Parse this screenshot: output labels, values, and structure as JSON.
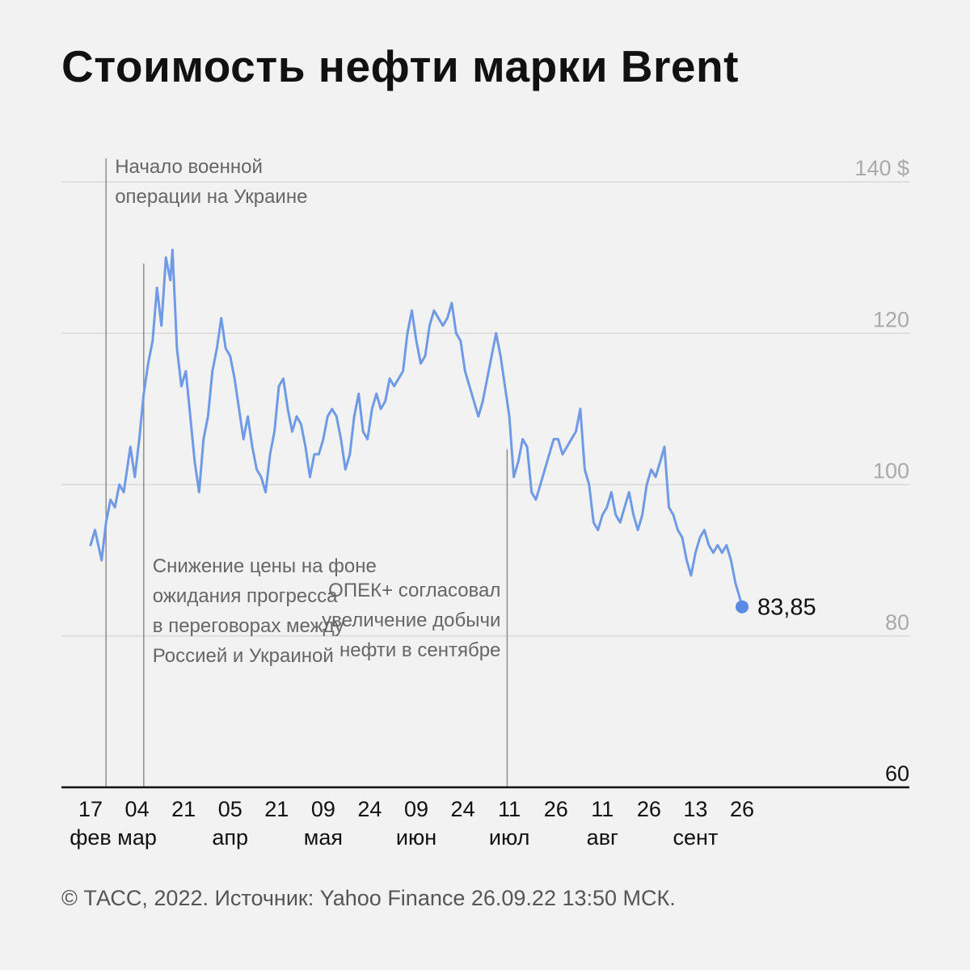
{
  "title": "Стоимость нефти марки Brent",
  "footer": "© ТАСС, 2022. Источник: Yahoo Finance 26.09.22 13:50 МСК.",
  "colors": {
    "series": "#6f9ae6",
    "last_point": "#5b8ae5",
    "background": "#f2f2f2"
  },
  "chart_data": {
    "type": "line",
    "title": "Стоимость нефти марки Brent",
    "ylim": [
      60,
      140
    ],
    "y_ticks": [
      "60",
      "80",
      "100",
      "120",
      "140 $"
    ],
    "grid": true,
    "x_ticks": [
      {
        "day": "17",
        "month": "фев"
      },
      {
        "day": "04",
        "month": "мар"
      },
      {
        "day": "21",
        "month": ""
      },
      {
        "day": "05",
        "month": "апр"
      },
      {
        "day": "21",
        "month": ""
      },
      {
        "day": "09",
        "month": "мая"
      },
      {
        "day": "24",
        "month": ""
      },
      {
        "day": "09",
        "month": "июн"
      },
      {
        "day": "24",
        "month": ""
      },
      {
        "day": "11",
        "month": "июл"
      },
      {
        "day": "26",
        "month": ""
      },
      {
        "day": "11",
        "month": "авг"
      },
      {
        "day": "26",
        "month": ""
      },
      {
        "day": "13",
        "month": "сент"
      },
      {
        "day": "26",
        "month": ""
      }
    ],
    "series": [
      {
        "points": [
          [
            0,
            92
          ],
          [
            2,
            94
          ],
          [
            5,
            90
          ],
          [
            7,
            95
          ],
          [
            9,
            98
          ],
          [
            11,
            97
          ],
          [
            13,
            100
          ],
          [
            15,
            99
          ],
          [
            18,
            105
          ],
          [
            20,
            101
          ],
          [
            22,
            106
          ],
          [
            24,
            112
          ],
          [
            26,
            116
          ],
          [
            28,
            119
          ],
          [
            30,
            126
          ],
          [
            32,
            121
          ],
          [
            34,
            130
          ],
          [
            36,
            127
          ],
          [
            37,
            131
          ],
          [
            39,
            118
          ],
          [
            41,
            113
          ],
          [
            43,
            115
          ],
          [
            45,
            109
          ],
          [
            47,
            103
          ],
          [
            49,
            99
          ],
          [
            51,
            106
          ],
          [
            53,
            109
          ],
          [
            55,
            115
          ],
          [
            57,
            118
          ],
          [
            59,
            122
          ],
          [
            61,
            118
          ],
          [
            63,
            117
          ],
          [
            65,
            114
          ],
          [
            67,
            110
          ],
          [
            69,
            106
          ],
          [
            71,
            109
          ],
          [
            73,
            105
          ],
          [
            75,
            102
          ],
          [
            77,
            101
          ],
          [
            79,
            99
          ],
          [
            81,
            104
          ],
          [
            83,
            107
          ],
          [
            85,
            113
          ],
          [
            87,
            114
          ],
          [
            89,
            110
          ],
          [
            91,
            107
          ],
          [
            93,
            109
          ],
          [
            95,
            108
          ],
          [
            97,
            105
          ],
          [
            99,
            101
          ],
          [
            101,
            104
          ],
          [
            103,
            104
          ],
          [
            105,
            106
          ],
          [
            107,
            109
          ],
          [
            109,
            110
          ],
          [
            111,
            109
          ],
          [
            113,
            106
          ],
          [
            115,
            102
          ],
          [
            117,
            104
          ],
          [
            119,
            109
          ],
          [
            121,
            112
          ],
          [
            123,
            107
          ],
          [
            125,
            106
          ],
          [
            127,
            110
          ],
          [
            129,
            112
          ],
          [
            131,
            110
          ],
          [
            133,
            111
          ],
          [
            135,
            114
          ],
          [
            137,
            113
          ],
          [
            139,
            114
          ],
          [
            141,
            115
          ],
          [
            143,
            120
          ],
          [
            145,
            123
          ],
          [
            147,
            119
          ],
          [
            149,
            116
          ],
          [
            151,
            117
          ],
          [
            153,
            121
          ],
          [
            155,
            123
          ],
          [
            157,
            122
          ],
          [
            159,
            121
          ],
          [
            161,
            122
          ],
          [
            163,
            124
          ],
          [
            165,
            120
          ],
          [
            167,
            119
          ],
          [
            169,
            115
          ],
          [
            171,
            113
          ],
          [
            173,
            111
          ],
          [
            175,
            109
          ],
          [
            177,
            111
          ],
          [
            179,
            114
          ],
          [
            181,
            117
          ],
          [
            183,
            120
          ],
          [
            185,
            117
          ],
          [
            187,
            113
          ],
          [
            189,
            109
          ],
          [
            191,
            101
          ],
          [
            193,
            103
          ],
          [
            195,
            106
          ],
          [
            197,
            105
          ],
          [
            199,
            99
          ],
          [
            201,
            98
          ],
          [
            203,
            100
          ],
          [
            205,
            102
          ],
          [
            207,
            104
          ],
          [
            209,
            106
          ],
          [
            211,
            106
          ],
          [
            213,
            104
          ],
          [
            215,
            105
          ],
          [
            217,
            106
          ],
          [
            219,
            107
          ],
          [
            221,
            110
          ],
          [
            223,
            102
          ],
          [
            225,
            100
          ],
          [
            227,
            95
          ],
          [
            229,
            94
          ],
          [
            231,
            96
          ],
          [
            233,
            97
          ],
          [
            235,
            99
          ],
          [
            237,
            96
          ],
          [
            239,
            95
          ],
          [
            241,
            97
          ],
          [
            243,
            99
          ],
          [
            245,
            96
          ],
          [
            247,
            94
          ],
          [
            249,
            96
          ],
          [
            251,
            100
          ],
          [
            253,
            102
          ],
          [
            255,
            101
          ],
          [
            257,
            103
          ],
          [
            259,
            105
          ],
          [
            261,
            97
          ],
          [
            263,
            96
          ],
          [
            265,
            94
          ],
          [
            267,
            93
          ],
          [
            269,
            90
          ],
          [
            271,
            88
          ],
          [
            273,
            91
          ],
          [
            275,
            93
          ],
          [
            277,
            94
          ],
          [
            279,
            92
          ],
          [
            281,
            91
          ],
          [
            283,
            92
          ],
          [
            285,
            91
          ],
          [
            287,
            92
          ],
          [
            289,
            90
          ],
          [
            291,
            87
          ],
          [
            293,
            85
          ],
          [
            294,
            83.85
          ]
        ],
        "last_value": 83.85,
        "last_label": "83,85"
      }
    ],
    "annotations": [
      {
        "x": 7,
        "lines": [
          "Начало военной",
          "операции на Украине"
        ]
      },
      {
        "x": 24,
        "lines": [
          "Снижение цены на фоне",
          "ожидания прогресса",
          "в переговорах между",
          "Россией и Украиной"
        ]
      },
      {
        "x": 188,
        "lines": [
          "ОПЕК+ согласовал",
          "увеличение добычи",
          "нефти в сентябре"
        ]
      }
    ]
  }
}
